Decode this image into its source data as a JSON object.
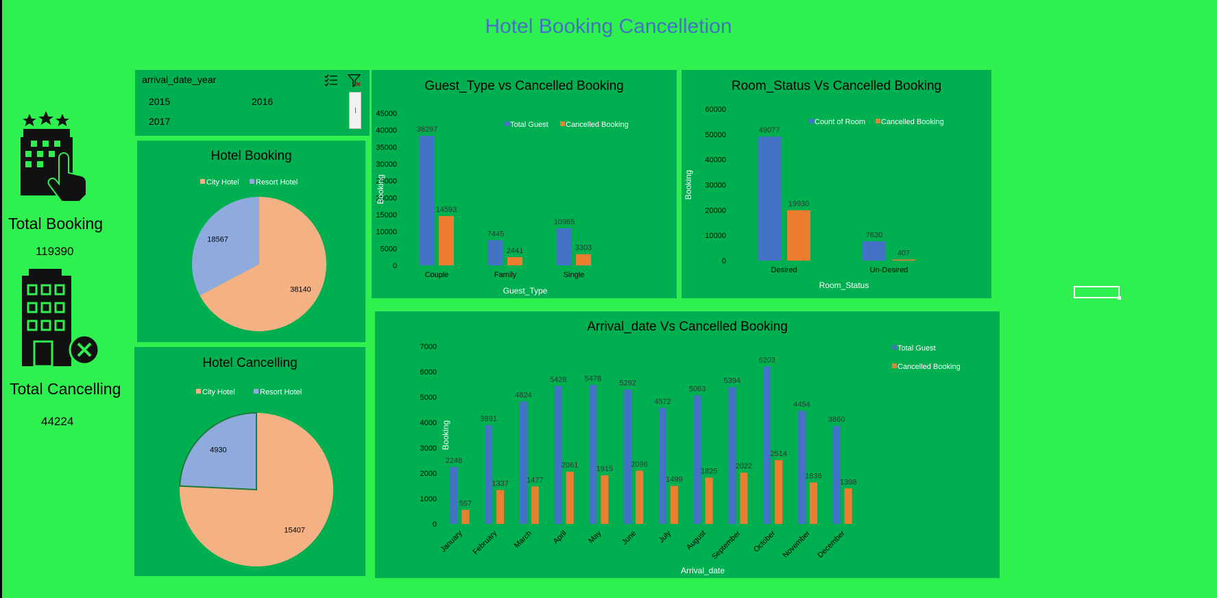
{
  "title": "Hotel Booking Cancelletion",
  "kpi": {
    "total_booking_label": "Total Booking",
    "total_booking_value": "119390",
    "total_cancelling_label": "Total Cancelling",
    "total_cancelling_value": "44224"
  },
  "slicer": {
    "header": "arrival_date_year",
    "items": [
      "2015",
      "2016",
      "2017"
    ]
  },
  "chart_data": [
    {
      "type": "pie",
      "title": "Hotel Booking",
      "legend": [
        "City Hotel",
        "Resort Hotel"
      ],
      "labels": [
        "City Hotel",
        "Resort Hotel"
      ],
      "values": [
        38140,
        18567
      ],
      "colors": [
        "#f4b183",
        "#8faadc"
      ]
    },
    {
      "type": "pie",
      "title": "Hotel Cancelling",
      "legend": [
        "City Hotel",
        "Resort Hotel"
      ],
      "labels": [
        "City Hotel",
        "Resort Hotel"
      ],
      "values": [
        15407,
        4930
      ],
      "colors": [
        "#f4b183",
        "#8faadc"
      ]
    },
    {
      "type": "bar",
      "title": "Guest_Type vs Cancelled Booking",
      "categories": [
        "Couple",
        "Family",
        "Single"
      ],
      "series": [
        {
          "name": "Total Guest",
          "values": [
            38297,
            7445,
            10965
          ],
          "color": "#4472c4"
        },
        {
          "name": "Cancelled Booking",
          "values": [
            14593,
            2441,
            3303
          ],
          "color": "#ed7d31"
        }
      ],
      "xlabel": "Guest_Type",
      "ylabel": "Booking",
      "ylim": [
        0,
        45000
      ],
      "yticks": [
        0,
        5000,
        10000,
        15000,
        20000,
        25000,
        30000,
        35000,
        40000,
        45000
      ]
    },
    {
      "type": "bar",
      "title": "Room_Status Vs Cancelled Booking",
      "categories": [
        "Desired",
        "Un-Desired"
      ],
      "series": [
        {
          "name": "Count  of Room",
          "values": [
            49077,
            7630
          ],
          "color": "#4472c4"
        },
        {
          "name": "Cancelled Booking",
          "values": [
            19930,
            407
          ],
          "color": "#ed7d31"
        }
      ],
      "xlabel": "Room_Status",
      "ylabel": "Booking",
      "ylim": [
        0,
        60000
      ],
      "yticks": [
        0,
        10000,
        20000,
        30000,
        40000,
        50000,
        60000
      ]
    },
    {
      "type": "bar",
      "title": "Arrival_date Vs Cancelled Booking",
      "categories": [
        "January",
        "February",
        "March",
        "April",
        "May",
        "June",
        "July",
        "August",
        "September",
        "October",
        "November",
        "December"
      ],
      "series": [
        {
          "name": "Total Guest",
          "values": [
            2248,
            3891,
            4824,
            5428,
            5478,
            5292,
            4572,
            5063,
            5394,
            6203,
            4454,
            3860
          ],
          "color": "#4472c4"
        },
        {
          "name": "Cancelled Booking",
          "values": [
            557,
            1337,
            1477,
            2061,
            1915,
            2096,
            1499,
            1825,
            2022,
            2514,
            1636,
            1398
          ],
          "color": "#ed7d31"
        }
      ],
      "xlabel": "Arrival_date",
      "ylabel": "Booking",
      "ylim": [
        0,
        7000
      ],
      "yticks": [
        0,
        1000,
        2000,
        3000,
        4000,
        5000,
        6000,
        7000
      ]
    }
  ]
}
